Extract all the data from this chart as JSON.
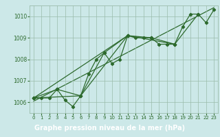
{
  "background_color": "#cce8e8",
  "plot_bg_color": "#cce8e8",
  "grid_color": "#99bbaa",
  "line_color": "#2d6a2d",
  "marker_color": "#2d6a2d",
  "xlabel": "Graphe pression niveau de la mer (hPa)",
  "xlabel_bg": "#3a7a3a",
  "xlabel_text_color": "#ffffff",
  "ylim": [
    1005.5,
    1010.5
  ],
  "xlim": [
    -0.5,
    23.5
  ],
  "yticks": [
    1006,
    1007,
    1008,
    1009,
    1010
  ],
  "xticks": [
    0,
    1,
    2,
    3,
    4,
    5,
    6,
    7,
    8,
    9,
    10,
    11,
    12,
    13,
    14,
    15,
    16,
    17,
    18,
    19,
    20,
    21,
    22,
    23
  ],
  "series1_x": [
    0,
    1,
    2,
    3,
    4,
    5,
    6,
    7,
    8,
    9,
    10,
    11,
    12,
    13,
    14,
    15,
    16,
    17,
    18,
    19,
    20,
    21,
    22,
    23
  ],
  "series1_y": [
    1006.2,
    1006.2,
    1006.2,
    1006.6,
    1006.1,
    1005.8,
    1006.3,
    1007.3,
    1008.0,
    1008.3,
    1007.8,
    1008.0,
    1009.1,
    1009.0,
    1009.0,
    1009.0,
    1008.7,
    1008.7,
    1008.7,
    1009.5,
    1010.1,
    1010.1,
    1009.7,
    1010.3
  ],
  "series2_x": [
    0,
    3,
    6,
    9,
    12,
    15,
    18,
    21
  ],
  "series2_y": [
    1006.2,
    1006.6,
    1006.3,
    1008.3,
    1009.1,
    1009.0,
    1008.7,
    1010.1
  ],
  "series3_x": [
    0,
    6,
    12,
    18
  ],
  "series3_y": [
    1006.2,
    1006.3,
    1009.1,
    1008.7
  ],
  "series4_x": [
    0,
    12
  ],
  "series4_y": [
    1006.2,
    1009.1
  ],
  "trend_x": [
    0,
    23
  ],
  "trend_y": [
    1006.05,
    1010.4
  ],
  "tick_fontsize": 5.5,
  "label_fontsize": 7.0,
  "linewidth": 0.9,
  "markersize": 2.2
}
